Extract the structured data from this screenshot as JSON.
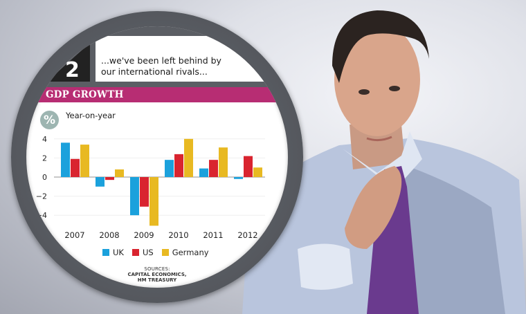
{
  "header": {
    "number": "2",
    "quote_line1": "...we've been left behind by",
    "quote_line2": "our international rivals..."
  },
  "banner": {
    "title": "GDP GROWTH",
    "color": "#b72d73"
  },
  "unit_icon": {
    "glyph": "%",
    "name": "percent-icon",
    "color": "#9db5b1"
  },
  "sources": {
    "label": "SOURCES:",
    "line1": "CAPITAL ECONOMICS,",
    "line2": "HM TREASURY"
  },
  "chart_data": {
    "type": "bar",
    "title": "GDP GROWTH",
    "subtitle": "Year-on-year",
    "xlabel": "",
    "ylabel": "%",
    "categories": [
      "2007",
      "2008",
      "2009",
      "2010",
      "2011",
      "2012"
    ],
    "series": [
      {
        "name": "UK",
        "color": "#1ba1dc",
        "values": [
          3.6,
          -1.0,
          -4.0,
          1.8,
          0.9,
          -0.2
        ]
      },
      {
        "name": "US",
        "color": "#d9242f",
        "values": [
          1.9,
          -0.3,
          -3.1,
          2.4,
          1.8,
          2.2
        ]
      },
      {
        "name": "Germany",
        "color": "#e8b922",
        "values": [
          3.4,
          0.8,
          -5.1,
          4.0,
          3.1,
          1.0
        ]
      }
    ],
    "yticks": [
      4,
      2,
      0,
      -2,
      -4
    ],
    "ylim": [
      -5.2,
      4.2
    ],
    "grid": true,
    "legend_position": "bottom"
  }
}
